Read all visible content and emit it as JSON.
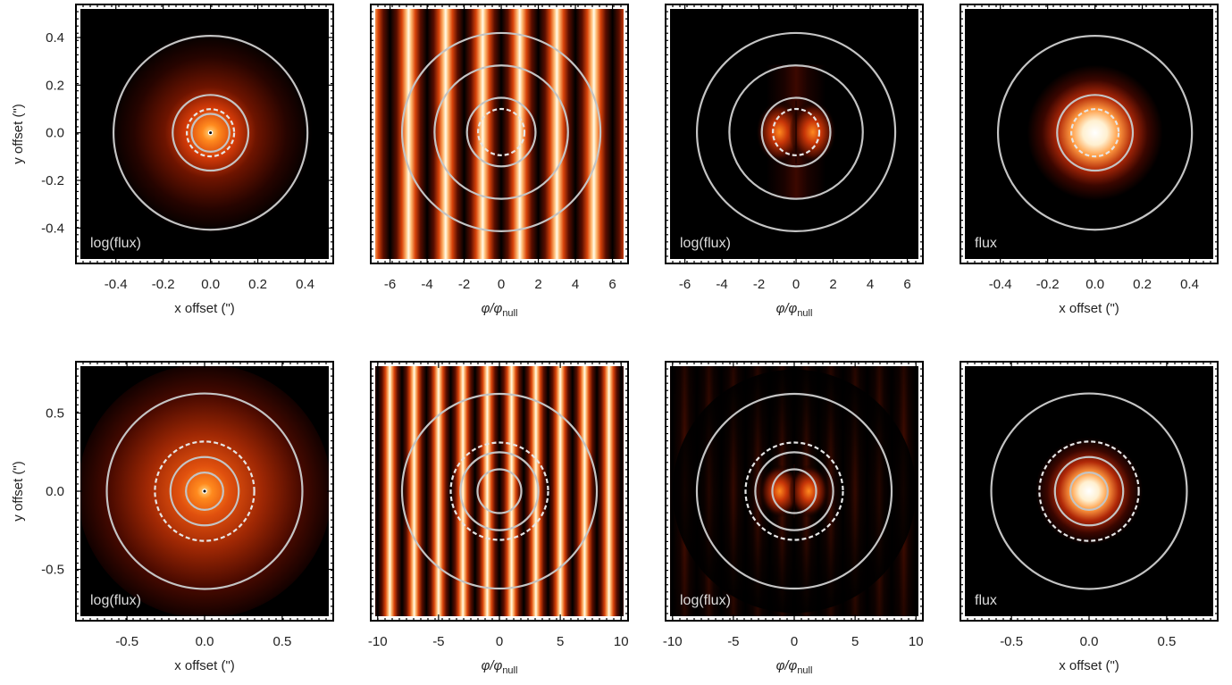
{
  "chart_data": [
    {
      "type": "heatmap",
      "row": 0,
      "col": 0,
      "map": "psf",
      "panel_label": "log(flux)",
      "xlabel": "x offset (\")",
      "ylabel": "y offset (\")",
      "xlim": [
        -0.55,
        0.5
      ],
      "ylim": [
        -0.53,
        0.52
      ],
      "xticks": [
        -0.4,
        -0.2,
        0.0,
        0.2,
        0.4
      ],
      "xtick_labels": [
        "-0.4",
        "-0.2",
        "0.0",
        "0.2",
        "0.4"
      ],
      "yticks": [
        -0.4,
        -0.2,
        0.0,
        0.2,
        0.4
      ],
      "ytick_labels": [
        "-0.4",
        "-0.2",
        "0.0",
        "0.2",
        "0.4"
      ],
      "solid_circle_radii": [
        0.08,
        0.16,
        0.41
      ],
      "dashed_circle_radii": [
        0.1
      ],
      "center_dot": true
    },
    {
      "type": "heatmap",
      "row": 0,
      "col": 1,
      "map": "fringes",
      "panel_label": "",
      "xlabel": "φ/φnull",
      "ylabel": "",
      "xlim": [
        -6.8,
        6.6
      ],
      "ylim": [
        -6.8,
        6.6
      ],
      "xticks": [
        -6,
        -4,
        -2,
        0,
        2,
        4,
        6
      ],
      "xtick_labels": [
        "-6",
        "-4",
        "-2",
        "0",
        "2",
        "4",
        "6"
      ],
      "yticks": [],
      "ytick_labels": [],
      "solid_circle_radii": [
        1.85,
        3.6,
        5.35
      ],
      "dashed_circle_radii": [
        1.25
      ],
      "center_dot": false
    },
    {
      "type": "heatmap",
      "row": 0,
      "col": 2,
      "map": "nulled",
      "panel_label": "log(flux)",
      "xlabel": "φ/φnull",
      "ylabel": "",
      "xlim": [
        -6.8,
        6.6
      ],
      "ylim": [
        -6.8,
        6.6
      ],
      "xticks": [
        -6,
        -4,
        -2,
        0,
        2,
        4,
        6
      ],
      "xtick_labels": [
        "-6",
        "-4",
        "-2",
        "0",
        "2",
        "4",
        "6"
      ],
      "yticks": [],
      "ytick_labels": [],
      "solid_circle_radii": [
        1.85,
        3.6,
        5.35
      ],
      "dashed_circle_radii": [
        1.25
      ],
      "center_dot": false
    },
    {
      "type": "heatmap",
      "row": 0,
      "col": 3,
      "map": "flux",
      "panel_label": "flux",
      "xlabel": "x offset (\")",
      "ylabel": "",
      "xlim": [
        -0.55,
        0.5
      ],
      "ylim": [
        -0.53,
        0.52
      ],
      "xticks": [
        -0.4,
        -0.2,
        0.0,
        0.2,
        0.4
      ],
      "xtick_labels": [
        "-0.4",
        "-0.2",
        "0.0",
        "0.2",
        "0.4"
      ],
      "yticks": [],
      "ytick_labels": [],
      "solid_circle_radii": [
        0.16,
        0.41
      ],
      "dashed_circle_radii": [
        0.1
      ],
      "center_dot": false
    },
    {
      "type": "heatmap",
      "row": 1,
      "col": 0,
      "map": "psf",
      "panel_label": "log(flux)",
      "xlabel": "x offset (\")",
      "ylabel": "y offset (\")",
      "xlim": [
        -0.8,
        0.8
      ],
      "ylim": [
        -0.8,
        0.8
      ],
      "xticks": [
        -0.5,
        0.0,
        0.5
      ],
      "xtick_labels": [
        "-0.5",
        "0.0",
        "0.5"
      ],
      "yticks": [
        -0.5,
        0.0,
        0.5
      ],
      "ytick_labels": [
        "-0.5",
        "0.0",
        "0.5"
      ],
      "solid_circle_radii": [
        0.12,
        0.22,
        0.63
      ],
      "dashed_circle_radii": [
        0.32
      ],
      "center_dot": true
    },
    {
      "type": "heatmap",
      "row": 1,
      "col": 1,
      "map": "fringes",
      "panel_label": "",
      "xlabel": "φ/φnull",
      "ylabel": "",
      "xlim": [
        -10.2,
        10.2
      ],
      "ylim": [
        -10.2,
        10.2
      ],
      "xticks": [
        -10,
        -5,
        0,
        5,
        10
      ],
      "xtick_labels": [
        "-10",
        "-5",
        "0",
        "5",
        "10"
      ],
      "yticks": [],
      "ytick_labels": [],
      "solid_circle_radii": [
        1.8,
        3.2,
        8.0
      ],
      "dashed_circle_radii": [
        4.0
      ],
      "center_dot": false
    },
    {
      "type": "heatmap",
      "row": 1,
      "col": 2,
      "map": "nulled",
      "panel_label": "log(flux)",
      "xlabel": "φ/φnull",
      "ylabel": "",
      "xlim": [
        -10.2,
        10.2
      ],
      "ylim": [
        -10.2,
        10.2
      ],
      "xticks": [
        -10,
        -5,
        0,
        5,
        10
      ],
      "xtick_labels": [
        "-10",
        "-5",
        "0",
        "5",
        "10"
      ],
      "yticks": [],
      "ytick_labels": [],
      "solid_circle_radii": [
        1.8,
        3.2,
        8.0
      ],
      "dashed_circle_radii": [
        4.0
      ],
      "center_dot": false
    },
    {
      "type": "heatmap",
      "row": 1,
      "col": 3,
      "map": "flux",
      "panel_label": "flux",
      "xlabel": "x offset (\")",
      "ylabel": "",
      "xlim": [
        -0.8,
        0.8
      ],
      "ylim": [
        -0.8,
        0.8
      ],
      "xticks": [
        -0.5,
        0.0,
        0.5
      ],
      "xtick_labels": [
        "-0.5",
        "0.0",
        "0.5"
      ],
      "yticks": [],
      "ytick_labels": [],
      "solid_circle_radii": [
        0.12,
        0.22,
        0.63
      ],
      "dashed_circle_radii": [
        0.32
      ],
      "center_dot": false
    }
  ]
}
